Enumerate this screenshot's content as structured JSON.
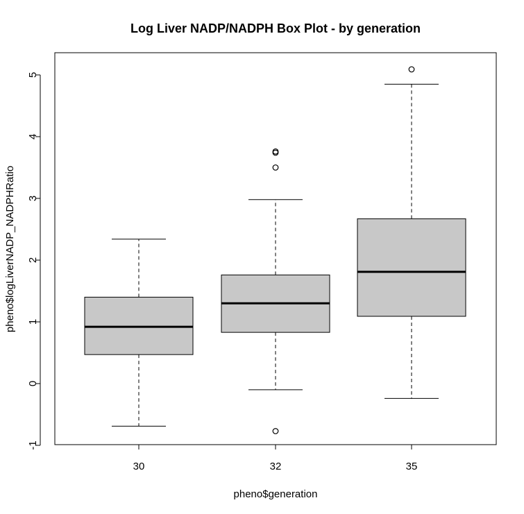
{
  "chart_data": {
    "type": "boxplot",
    "title": "Log Liver NADP/NADPH Box Plot - by generation",
    "xlabel": "pheno$generation",
    "ylabel": "pheno$logLiverNADP_NADPHRatio",
    "ylim": [
      -1,
      5.3
    ],
    "yticks": [
      -1,
      0,
      1,
      2,
      3,
      4,
      5
    ],
    "ytick_labels": [
      "-1",
      "0",
      "1",
      "2",
      "3",
      "4",
      "5"
    ],
    "categories": [
      "30",
      "32",
      "35"
    ],
    "box_fill": "#c8c8c8",
    "grid": false,
    "legend": "none",
    "boxes": [
      {
        "category": "30",
        "whisker_low": -0.69,
        "q1": 0.47,
        "median": 0.92,
        "q3": 1.4,
        "whisker_high": 2.34,
        "outliers": []
      },
      {
        "category": "32",
        "whisker_low": -0.1,
        "q1": 0.83,
        "median": 1.3,
        "q3": 1.76,
        "whisker_high": 2.98,
        "outliers": [
          3.76,
          3.74,
          3.5,
          -0.77
        ]
      },
      {
        "category": "35",
        "whisker_low": -0.24,
        "q1": 1.09,
        "median": 1.81,
        "q3": 2.67,
        "whisker_high": 4.85,
        "outliers": [
          5.09
        ]
      }
    ]
  }
}
